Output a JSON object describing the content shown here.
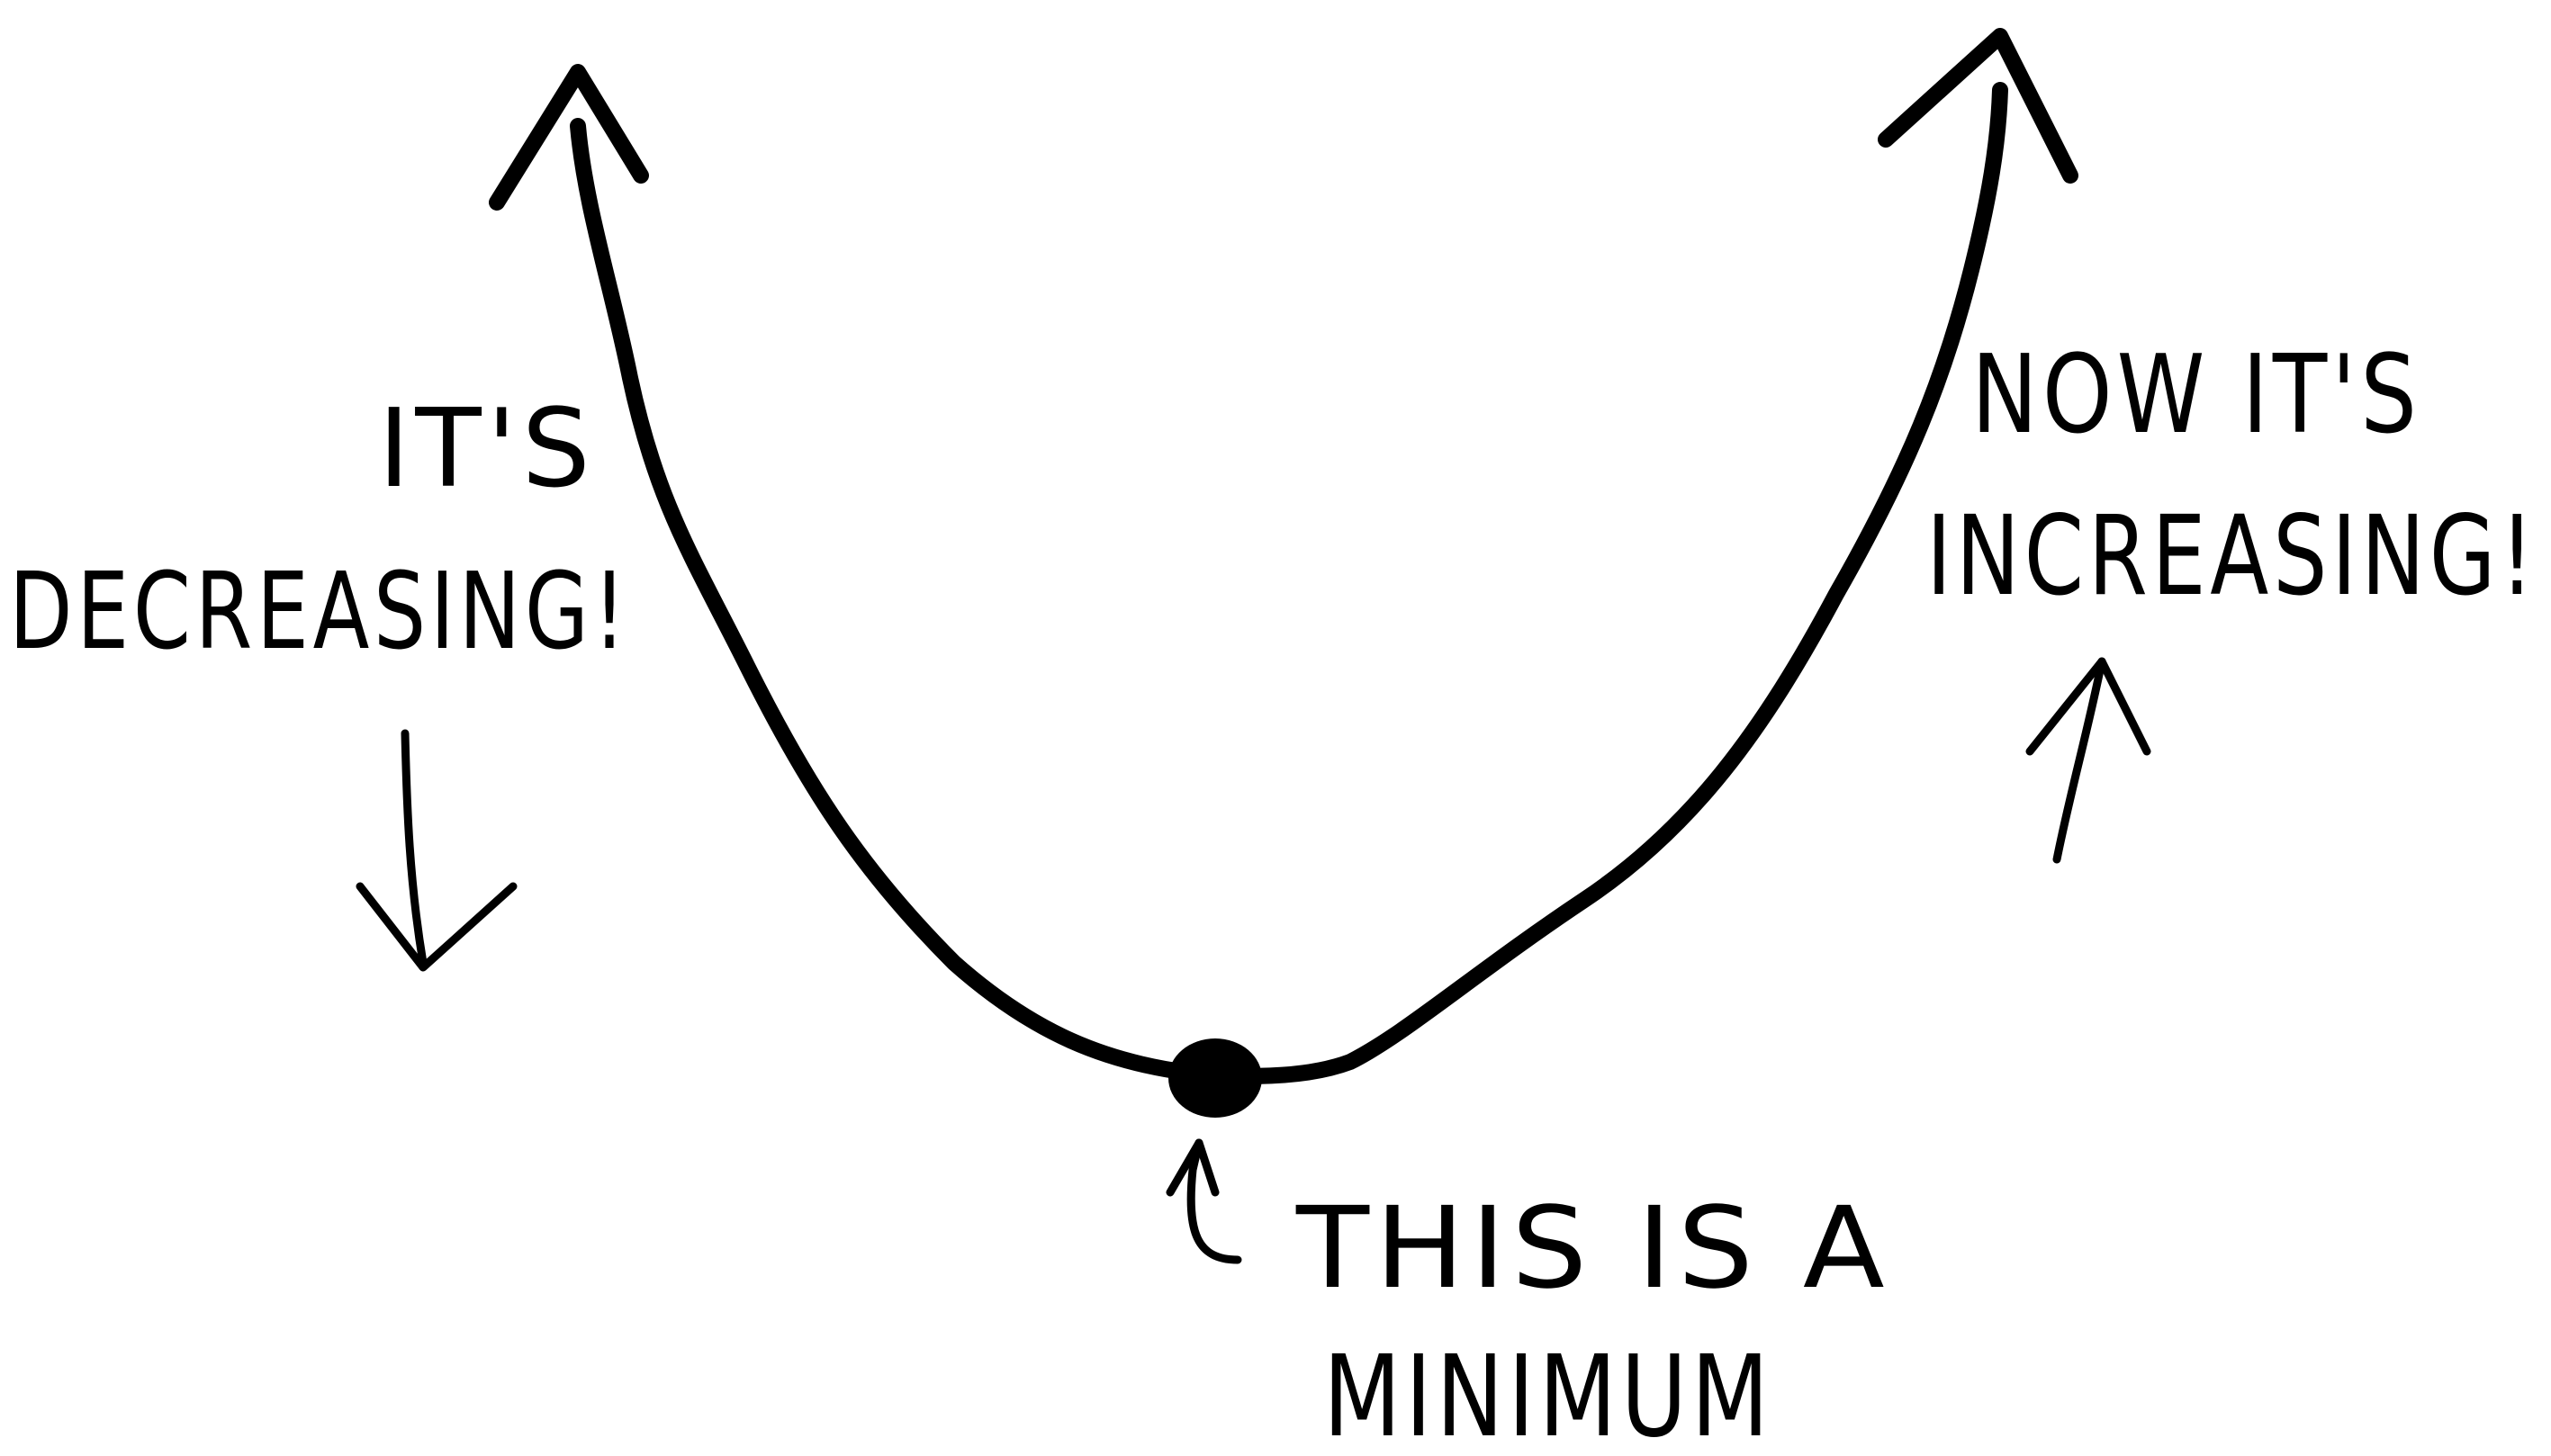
{
  "diagram": {
    "ink_color": "#000000",
    "background_color": "#ffffff",
    "labels": {
      "decreasing_line1": "IT'S",
      "decreasing_line2": "DECREASING!",
      "increasing_line1": "NOW IT'S",
      "increasing_line2": "INCREASING!",
      "minimum_line1": "THIS IS A",
      "minimum_line2": "MINIMUM"
    },
    "elements": {
      "curve": "u-shaped-curve",
      "minimum_point": "minimum-point-dot",
      "arrows": [
        "down-arrow",
        "up-arrow",
        "curved-up-arrow"
      ]
    }
  }
}
